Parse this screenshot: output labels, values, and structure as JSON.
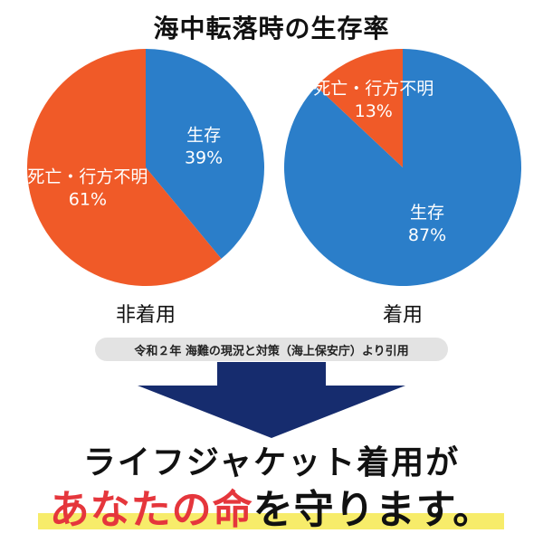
{
  "title": "海中転落時の生存率",
  "chart_data": [
    {
      "type": "pie",
      "caption": "非着用",
      "slices": [
        {
          "label": "生存",
          "value": 39,
          "display": "39%",
          "color": "#2b7ec9"
        },
        {
          "label": "死亡・行方不明",
          "value": 61,
          "display": "61%",
          "color": "#f05a28"
        }
      ]
    },
    {
      "type": "pie",
      "caption": "着用",
      "slices": [
        {
          "label": "生存",
          "value": 87,
          "display": "87%",
          "color": "#2b7ec9"
        },
        {
          "label": "死亡・行方不明",
          "value": 13,
          "display": "13%",
          "color": "#f05a28"
        }
      ]
    }
  ],
  "source": "令和２年 海難の現況と対策（海上保安庁）より引用",
  "arrow_color": "#162c6e",
  "highlight_color": "#f7ec6a",
  "slogan": {
    "line1": "ライフジャケット着用が",
    "line2_red": "あなたの命",
    "line2_black": "を守ります。"
  }
}
